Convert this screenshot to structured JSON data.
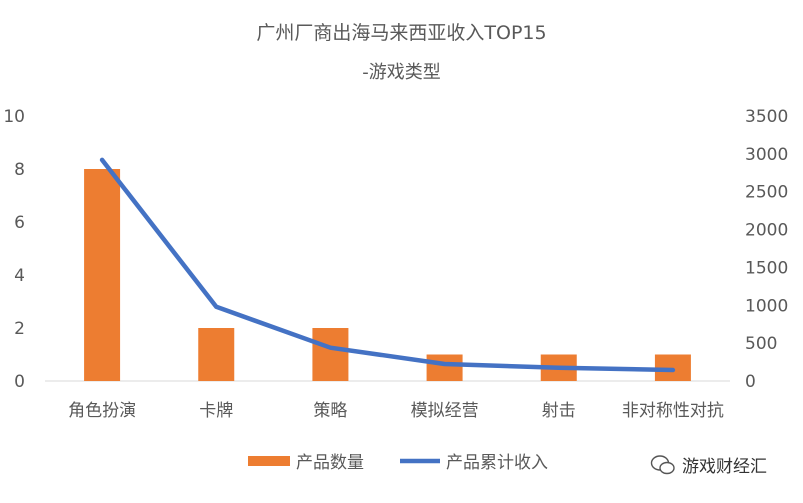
{
  "chart_data": {
    "type": "bar+line",
    "title": "广州厂商出海马来西亚收入TOP15",
    "subtitle": "-游戏类型",
    "categories": [
      "角色扮演",
      "卡牌",
      "策略",
      "模拟经营",
      "射击",
      "非对称性对抗"
    ],
    "series": [
      {
        "name": "产品数量",
        "type": "bar",
        "axis": "left",
        "color": "#ED7D31",
        "values": [
          8,
          2,
          2,
          1,
          1,
          1
        ]
      },
      {
        "name": "产品累计收入",
        "type": "line",
        "axis": "right",
        "color": "#4472C4",
        "values": [
          2920,
          980,
          440,
          225,
          175,
          145
        ]
      }
    ],
    "left_axis": {
      "range": [
        0,
        10
      ],
      "ticks": [
        "0",
        "2",
        "4",
        "6",
        "8",
        "10"
      ]
    },
    "right_axis": {
      "range": [
        0,
        3500
      ],
      "ticks": [
        "0",
        "500",
        "1000",
        "1500",
        "2000",
        "2500",
        "3000",
        "3500"
      ]
    },
    "grid": false,
    "legend_position": "bottom"
  },
  "watermark": "游戏财经汇"
}
